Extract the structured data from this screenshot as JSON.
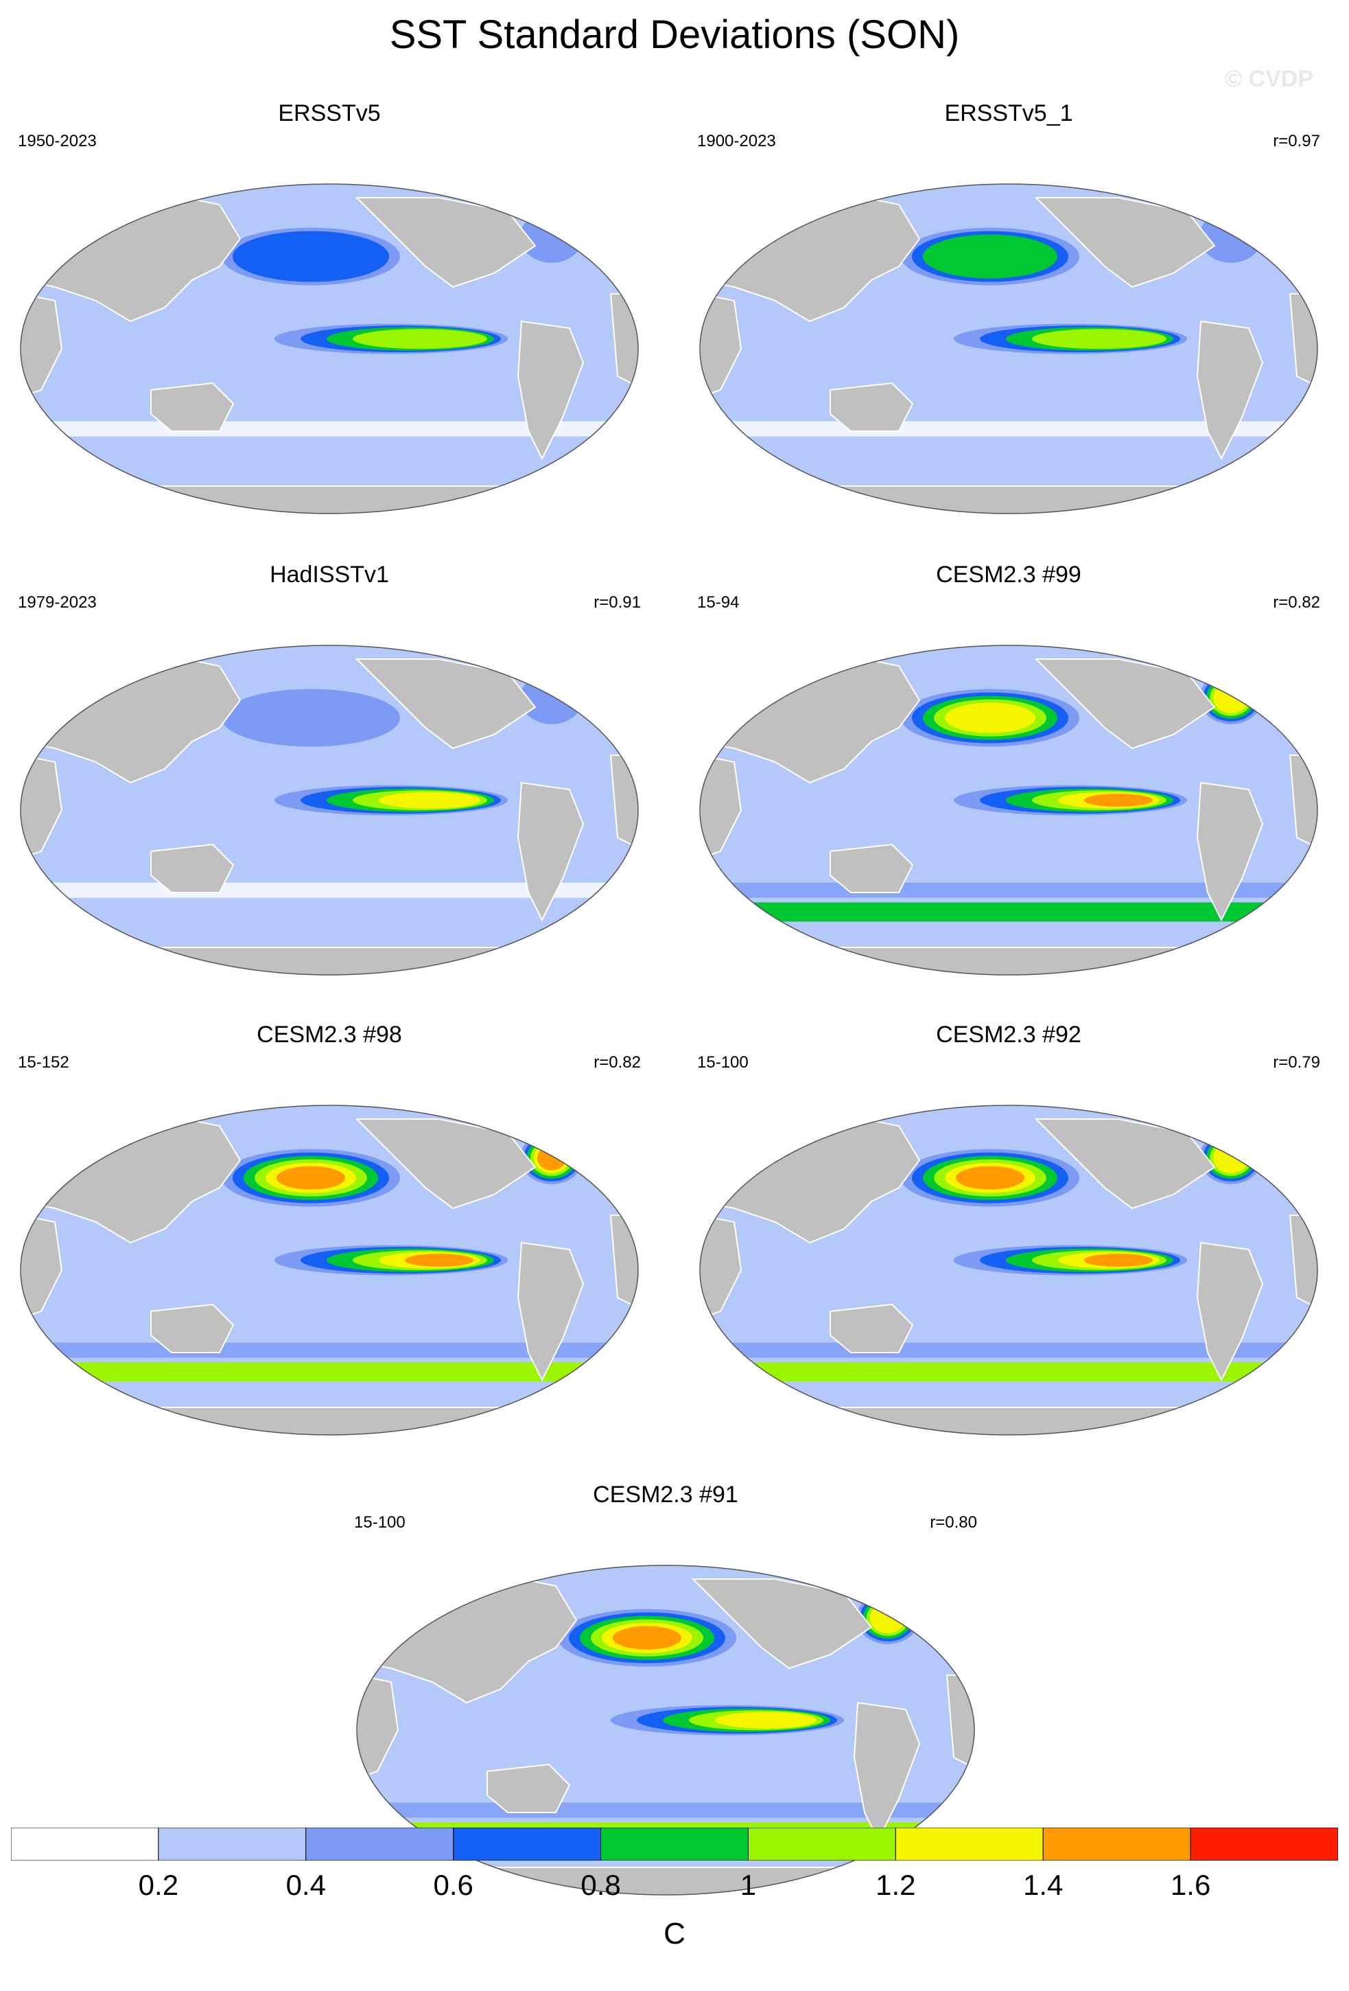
{
  "title": "SST Standard Deviations (SON)",
  "watermark": "© CVDP",
  "colors": {
    "land": "#c0c0c0",
    "levels": [
      "#ffffff",
      "#b4c8fa",
      "#7d9bf5",
      "#1460f5",
      "#00c832",
      "#9bf500",
      "#f5f500",
      "#ff9b00",
      "#ff1e00"
    ]
  },
  "chart_data": {
    "type": "heatmap",
    "projection": "global map (Robinson-like), Pacific-centered",
    "colorbar": {
      "label": "C",
      "ticks": [
        "0.2",
        "0.4",
        "0.6",
        "0.8",
        "1",
        "1.2",
        "1.4",
        "1.6"
      ],
      "levels": [
        0.2,
        0.4,
        0.6,
        0.8,
        1.0,
        1.2,
        1.4,
        1.6
      ]
    },
    "panels": [
      {
        "name": "ERSSTv5",
        "period": "1950-2023",
        "corr": "",
        "enso_max": 1.2,
        "npac": 0.8,
        "southern_ocean": 0.2,
        "natl": 0.6
      },
      {
        "name": "ERSSTv5_1",
        "period": "1900-2023",
        "corr": "r=0.97",
        "enso_max": 1.2,
        "npac": 1.0,
        "southern_ocean": 0.2,
        "natl": 0.6
      },
      {
        "name": "HadISSTv1",
        "period": "1979-2023",
        "corr": "r=0.91",
        "enso_max": 1.4,
        "npac": 0.6,
        "southern_ocean": 0.2,
        "natl": 0.6
      },
      {
        "name": "CESM2.3 #99",
        "period": "15-94",
        "corr": "r=0.82",
        "enso_max": 1.6,
        "npac": 1.4,
        "southern_ocean": 0.8,
        "natl": 1.4
      },
      {
        "name": "CESM2.3 #98",
        "period": "15-152",
        "corr": "r=0.82",
        "enso_max": 1.6,
        "npac": 1.6,
        "southern_ocean": 1.0,
        "natl": 1.6
      },
      {
        "name": "CESM2.3 #92",
        "period": "15-100",
        "corr": "r=0.79",
        "enso_max": 1.6,
        "npac": 1.6,
        "southern_ocean": 1.0,
        "natl": 1.4
      },
      {
        "name": "CESM2.3 #91",
        "period": "15-100",
        "corr": "r=0.80",
        "enso_max": 1.4,
        "npac": 1.6,
        "southern_ocean": 1.0,
        "natl": 1.4
      }
    ]
  }
}
